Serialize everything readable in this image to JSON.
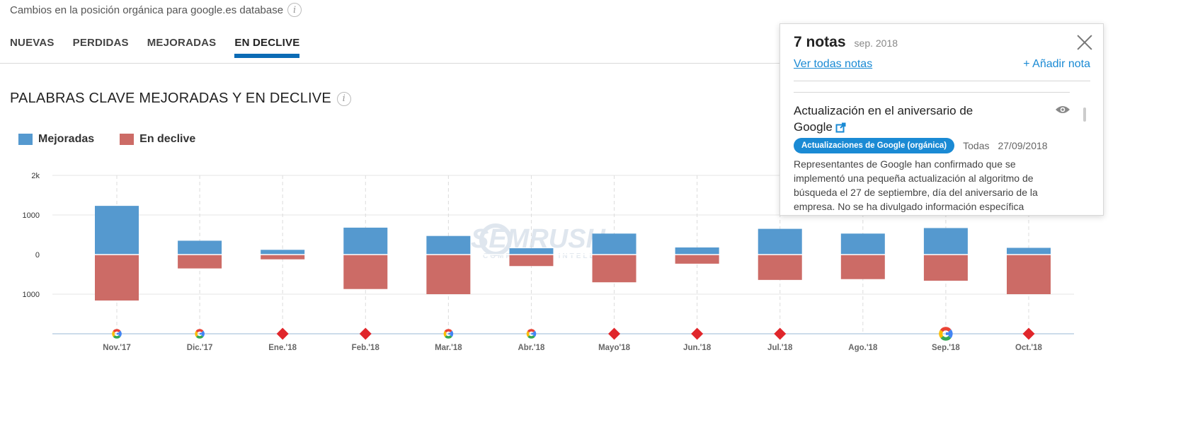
{
  "header": {
    "database_label": "Cambios en la posición orgánica para google.es database"
  },
  "tabs": [
    {
      "label": "NUEVAS",
      "active": false
    },
    {
      "label": "PERDIDAS",
      "active": false
    },
    {
      "label": "MEJORADAS",
      "active": false
    },
    {
      "label": "EN DECLIVE",
      "active": true
    }
  ],
  "section": {
    "title": "PALABRAS CLAVE MEJORADAS Y EN DECLIVE"
  },
  "legend": [
    {
      "label": "Mejoradas",
      "color": "#5599cf"
    },
    {
      "label": "En declive",
      "color": "#cc6b66"
    }
  ],
  "chart_data": {
    "type": "bar",
    "categories": [
      "Nov.'17",
      "Dic.'17",
      "Ene.'18",
      "Feb.'18",
      "Mar.'18",
      "Abr.'18",
      "Mayo'18",
      "Jun.'18",
      "Jul.'18",
      "Ago.'18",
      "Sep.'18",
      "Oct.'18"
    ],
    "series": [
      {
        "name": "Mejoradas",
        "color": "#5599cf",
        "values": [
          1230,
          350,
          120,
          680,
          470,
          160,
          530,
          180,
          650,
          530,
          670,
          170
        ]
      },
      {
        "name": "En declive",
        "color": "#cc6b66",
        "values": [
          -1160,
          -350,
          -120,
          -870,
          -1000,
          -290,
          -700,
          -230,
          -640,
          -620,
          -660,
          -1000
        ]
      }
    ],
    "yticks": [
      {
        "value": 2000,
        "label": "2k"
      },
      {
        "value": 1000,
        "label": "1000"
      },
      {
        "value": 0,
        "label": "0"
      },
      {
        "value": -1000,
        "label": "1000"
      }
    ],
    "ylim": [
      -2000,
      2000
    ],
    "grid": true,
    "markers": [
      "google",
      "google",
      "diamond",
      "diamond",
      "google",
      "google",
      "diamond",
      "diamond",
      "diamond",
      "none",
      "google-large",
      "diamond"
    ],
    "marker_colors": {
      "diamond": "#e0262b",
      "google_blue": "#4285f4",
      "google_red": "#ea4335",
      "google_yellow": "#fbbc05",
      "google_green": "#34a853"
    },
    "watermark": {
      "brand": "SEMRUSH",
      "tagline": "COMPETITIVE INTELLIGENCE"
    }
  },
  "notes_panel": {
    "count_label": "7 notas",
    "period": "sep. 2018",
    "view_all": "Ver todas notas",
    "add_note": "+ Añadir nota",
    "note": {
      "title": "Actualización en el aniversario de Google",
      "badge": "Actualizaciones de Google (orgánica)",
      "scope": "Todas",
      "date": "27/09/2018",
      "description": "Representantes de Google han confirmado que se implementó una pequeña actualización al algoritmo de búsqueda el 27 de septiembre, día del aniversario de la empresa. No se ha divulgado información específica"
    }
  }
}
